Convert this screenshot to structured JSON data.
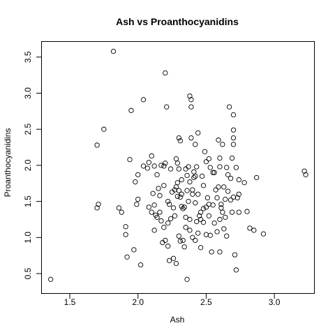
{
  "chart_data": {
    "type": "scatter",
    "title": "Ash vs Proanthocyanidins",
    "xlabel": "Ash",
    "ylabel": "Proanthocyanidins",
    "xlim": [
      1.36,
      3.23
    ],
    "ylim": [
      0.41,
      3.58
    ],
    "xticks": [
      "1.5",
      "2.0",
      "2.5",
      "3.0"
    ],
    "yticks": [
      "0.5",
      "1.0",
      "1.5",
      "2.0",
      "2.5",
      "3.0",
      "3.5"
    ],
    "grid": false,
    "marker": "open-circle",
    "points": [
      [
        1.36,
        0.42
      ],
      [
        1.82,
        3.58
      ],
      [
        2.2,
        3.28
      ],
      [
        2.38,
        2.96
      ],
      [
        2.39,
        2.91
      ],
      [
        2.39,
        2.81
      ],
      [
        2.21,
        2.81
      ],
      [
        2.04,
        2.91
      ],
      [
        1.95,
        2.76
      ],
      [
        1.75,
        2.5
      ],
      [
        2.67,
        2.81
      ],
      [
        2.7,
        2.7
      ],
      [
        2.7,
        2.49
      ],
      [
        2.7,
        2.38
      ],
      [
        2.7,
        2.29
      ],
      [
        2.62,
        2.29
      ],
      [
        2.59,
        2.35
      ],
      [
        2.44,
        2.45
      ],
      [
        2.39,
        2.38
      ],
      [
        2.3,
        2.38
      ],
      [
        2.31,
        2.34
      ],
      [
        2.49,
        2.19
      ],
      [
        2.42,
        2.29
      ],
      [
        2.6,
        2.1
      ],
      [
        2.69,
        2.1
      ],
      [
        2.5,
        2.05
      ],
      [
        2.52,
        2.09
      ],
      [
        1.7,
        2.28
      ],
      [
        1.94,
        2.08
      ],
      [
        2.0,
        1.87
      ],
      [
        1.98,
        1.77
      ],
      [
        2.04,
        1.99
      ],
      [
        2.07,
        1.96
      ],
      [
        2.08,
        2.04
      ],
      [
        2.1,
        2.13
      ],
      [
        2.12,
        1.99
      ],
      [
        2.14,
        1.87
      ],
      [
        2.17,
        2.0
      ],
      [
        2.19,
        1.99
      ],
      [
        2.2,
        2.03
      ],
      [
        2.24,
        1.95
      ],
      [
        2.28,
        2.09
      ],
      [
        2.29,
        2.03
      ],
      [
        2.3,
        1.95
      ],
      [
        2.35,
        1.95
      ],
      [
        2.37,
        1.98
      ],
      [
        2.41,
        1.91
      ],
      [
        2.43,
        1.98
      ],
      [
        2.47,
        1.85
      ],
      [
        2.53,
        1.97
      ],
      [
        2.56,
        1.9
      ],
      [
        2.6,
        1.98
      ],
      [
        2.65,
        1.97
      ],
      [
        2.66,
        1.87
      ],
      [
        2.72,
        1.97
      ],
      [
        2.74,
        1.8
      ],
      [
        2.78,
        1.76
      ],
      [
        2.87,
        1.83
      ],
      [
        3.22,
        1.92
      ],
      [
        3.23,
        1.87
      ],
      [
        1.7,
        1.41
      ],
      [
        1.71,
        1.46
      ],
      [
        1.86,
        1.41
      ],
      [
        1.88,
        1.35
      ],
      [
        1.91,
        1.15
      ],
      [
        1.91,
        1.04
      ],
      [
        1.92,
        0.73
      ],
      [
        1.97,
        0.83
      ],
      [
        1.99,
        1.46
      ],
      [
        2.0,
        1.53
      ],
      [
        2.02,
        0.62
      ],
      [
        2.08,
        1.42
      ],
      [
        2.1,
        1.35
      ],
      [
        2.11,
        1.61
      ],
      [
        2.12,
        1.45
      ],
      [
        2.13,
        1.31
      ],
      [
        2.14,
        1.28
      ],
      [
        2.16,
        1.35
      ],
      [
        2.17,
        1.23
      ],
      [
        2.18,
        0.93
      ],
      [
        2.19,
        1.14
      ],
      [
        2.2,
        0.96
      ],
      [
        2.22,
        0.88
      ],
      [
        2.23,
        1.46
      ],
      [
        2.23,
        0.68
      ],
      [
        2.24,
        1.26
      ],
      [
        2.25,
        1.63
      ],
      [
        2.26,
        1.41
      ],
      [
        2.27,
        1.66
      ],
      [
        2.28,
        0.64
      ],
      [
        2.29,
        1.57
      ],
      [
        2.3,
        1.02
      ],
      [
        2.31,
        0.95
      ],
      [
        2.31,
        1.56
      ],
      [
        2.32,
        1.43
      ],
      [
        2.32,
        1.6
      ],
      [
        2.33,
        0.96
      ],
      [
        2.34,
        1.42
      ],
      [
        2.35,
        1.28
      ],
      [
        2.35,
        1.14
      ],
      [
        2.36,
        1.65
      ],
      [
        2.36,
        0.42
      ],
      [
        2.38,
        1.77
      ],
      [
        2.38,
        1.25
      ],
      [
        2.4,
        1.0
      ],
      [
        2.4,
        1.66
      ],
      [
        2.41,
        1.83
      ],
      [
        2.42,
        1.85
      ],
      [
        2.42,
        0.96
      ],
      [
        2.43,
        1.22
      ],
      [
        2.44,
        1.06
      ],
      [
        2.45,
        1.3
      ],
      [
        2.46,
        1.25
      ],
      [
        2.46,
        0.86
      ],
      [
        2.48,
        1.4
      ],
      [
        2.5,
        1.04
      ],
      [
        2.5,
        1.42
      ],
      [
        2.51,
        1.55
      ],
      [
        2.52,
        1.46
      ],
      [
        2.53,
        1.03
      ],
      [
        2.54,
        0.8
      ],
      [
        2.55,
        1.45
      ],
      [
        2.57,
        1.66
      ],
      [
        2.58,
        1.08
      ],
      [
        2.59,
        1.7
      ],
      [
        2.6,
        1.25
      ],
      [
        2.6,
        0.8
      ],
      [
        2.61,
        1.46
      ],
      [
        2.62,
        1.35
      ],
      [
        2.63,
        1.12
      ],
      [
        2.64,
        1.53
      ],
      [
        2.65,
        1.02
      ],
      [
        2.66,
        1.64
      ],
      [
        2.68,
        1.52
      ],
      [
        2.69,
        1.35
      ],
      [
        2.7,
        1.56
      ],
      [
        2.71,
        0.76
      ],
      [
        2.72,
        0.55
      ],
      [
        2.73,
        1.55
      ],
      [
        2.74,
        1.35
      ],
      [
        2.8,
        1.36
      ],
      [
        2.82,
        1.13
      ],
      [
        2.85,
        1.1
      ],
      [
        2.92,
        1.05
      ],
      [
        2.48,
        1.21
      ],
      [
        2.22,
        1.2
      ],
      [
        2.3,
        1.65
      ],
      [
        2.37,
        1.5
      ],
      [
        2.26,
        0.71
      ],
      [
        2.34,
        0.87
      ],
      [
        2.12,
        1.1
      ],
      [
        2.55,
        1.9
      ],
      [
        2.63,
        1.7
      ],
      [
        2.44,
        1.6
      ],
      [
        2.28,
        1.7
      ],
      [
        2.16,
        1.58
      ],
      [
        2.68,
        1.82
      ],
      [
        2.19,
        1.72
      ],
      [
        2.46,
        1.35
      ],
      [
        2.32,
        1.8
      ],
      [
        2.58,
        1.55
      ],
      [
        2.27,
        1.3
      ],
      [
        2.48,
        1.72
      ],
      [
        2.33,
        1.4
      ],
      [
        2.61,
        1.41
      ],
      [
        2.74,
        1.6
      ],
      [
        2.38,
        1.1
      ],
      [
        2.22,
        1.5
      ],
      [
        2.52,
        1.3
      ],
      [
        2.4,
        1.6
      ],
      [
        2.56,
        1.2
      ],
      [
        2.15,
        1.68
      ],
      [
        2.64,
        1.28
      ],
      [
        2.36,
        1.86
      ],
      [
        2.42,
        1.48
      ],
      [
        2.29,
        1.76
      ]
    ]
  }
}
